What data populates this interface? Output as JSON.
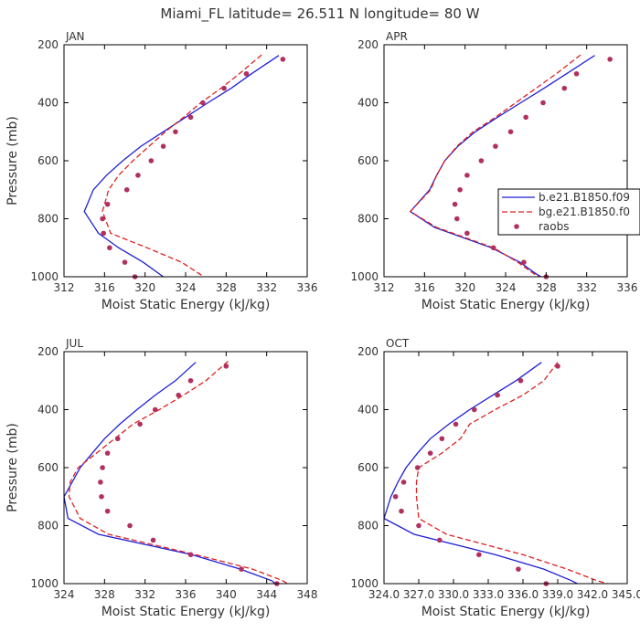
{
  "title": "Miami_FL   latitude= 26.511 N longitude= 80 W",
  "legend_entries": [
    "b.e21.B1850.f09",
    "bg.e21.B1850.f0",
    "raobs"
  ],
  "colors": {
    "model_b": "#1f1fd6",
    "model_bg": "#e02020",
    "raobs": "#b03060",
    "axis": "#000000",
    "text": "#333333"
  },
  "chart_data": [
    {
      "type": "line",
      "panel": "JAN",
      "xlabel": "Moist Static Energy (kJ/kg)",
      "ylabel": "Pressure (mb)",
      "xlim": [
        312,
        336
      ],
      "ylim": [
        1000,
        200
      ],
      "xticks": [
        312,
        316,
        320,
        324,
        328,
        332,
        336
      ],
      "xtick_labels": [
        "312",
        "316",
        "320",
        "324",
        "328",
        "332",
        "336"
      ],
      "yticks": [
        200,
        400,
        600,
        800,
        1000
      ],
      "ytick_labels": [
        "200",
        "400",
        "600",
        "800",
        "1000"
      ],
      "legend_shown": false,
      "series": [
        {
          "style": "solid",
          "color": "#1f1fd6",
          "y": [
            237,
            300,
            350,
            400,
            450,
            500,
            550,
            600,
            650,
            700,
            775,
            850,
            900,
            950,
            1000,
            1010
          ],
          "values": [
            333.2,
            330.5,
            328.5,
            326.2,
            324.0,
            321.8,
            319.6,
            317.8,
            316.2,
            314.9,
            314.0,
            315.4,
            317.4,
            319.8,
            321.8,
            322.3
          ]
        },
        {
          "style": "dashed",
          "color": "#e02020",
          "y": [
            235,
            300,
            350,
            400,
            450,
            500,
            550,
            600,
            650,
            700,
            775,
            850,
            900,
            950,
            1000,
            1012
          ],
          "values": [
            331.5,
            329.3,
            327.5,
            325.5,
            323.8,
            322.0,
            320.4,
            318.8,
            317.4,
            316.4,
            315.8,
            316.6,
            320.2,
            323.6,
            325.8,
            326.5
          ]
        },
        {
          "style": "points",
          "color": "#b03060",
          "y": [
            250,
            300,
            350,
            400,
            450,
            500,
            550,
            600,
            650,
            700,
            750,
            800,
            850,
            900,
            950,
            1000
          ],
          "values": [
            333.6,
            330.0,
            327.8,
            325.7,
            324.5,
            323.0,
            321.8,
            320.6,
            319.3,
            318.2,
            316.3,
            315.8,
            315.9,
            316.5,
            318.0,
            319.0
          ]
        }
      ]
    },
    {
      "type": "line",
      "panel": "APR",
      "xlabel": "Moist Static Energy (kJ/kg)",
      "ylabel": "",
      "xlim": [
        312,
        336
      ],
      "ylim": [
        1000,
        200
      ],
      "xticks": [
        312,
        316,
        320,
        324,
        328,
        332,
        336
      ],
      "xtick_labels": [
        "312",
        "316",
        "320",
        "324",
        "328",
        "332",
        "336"
      ],
      "yticks": [
        200,
        400,
        600,
        800,
        1000
      ],
      "ytick_labels": [
        "200",
        "400",
        "600",
        "800",
        "1000"
      ],
      "legend_shown": true,
      "series": [
        {
          "style": "solid",
          "color": "#1f1fd6",
          "y": [
            237,
            300,
            350,
            400,
            450,
            500,
            550,
            600,
            650,
            700,
            775,
            830,
            900,
            950,
            990,
            1010
          ],
          "values": [
            332.8,
            330.0,
            327.8,
            325.5,
            323.2,
            321.0,
            319.3,
            318.0,
            317.2,
            316.5,
            314.6,
            317.0,
            322.6,
            325.4,
            327.0,
            328.0
          ]
        },
        {
          "style": "dashed",
          "color": "#e02020",
          "y": [
            235,
            300,
            350,
            400,
            450,
            500,
            550,
            600,
            650,
            700,
            775,
            830,
            900,
            950,
            990,
            1010
          ],
          "values": [
            331.4,
            329.0,
            327.0,
            325.0,
            323.0,
            320.8,
            319.2,
            318.0,
            317.2,
            316.6,
            314.6,
            317.2,
            322.8,
            325.2,
            326.8,
            327.8
          ]
        },
        {
          "style": "points",
          "color": "#b03060",
          "y": [
            250,
            300,
            350,
            400,
            450,
            500,
            550,
            600,
            650,
            700,
            750,
            800,
            850,
            900,
            950,
            1000
          ],
          "values": [
            334.3,
            331.0,
            329.8,
            327.7,
            326.0,
            324.5,
            323.0,
            321.6,
            320.2,
            319.5,
            319.0,
            319.2,
            320.2,
            322.8,
            325.8,
            328.0
          ]
        }
      ]
    },
    {
      "type": "line",
      "panel": "JUL",
      "xlabel": "Moist Static Energy (kJ/kg)",
      "ylabel": "Pressure (mb)",
      "xlim": [
        324,
        348
      ],
      "ylim": [
        1000,
        200
      ],
      "xticks": [
        324,
        328,
        332,
        336,
        340,
        344,
        348
      ],
      "xtick_labels": [
        "324",
        "328",
        "332",
        "336",
        "340",
        "344",
        "348"
      ],
      "yticks": [
        200,
        400,
        600,
        800,
        1000
      ],
      "ytick_labels": [
        "200",
        "400",
        "600",
        "800",
        "1000"
      ],
      "legend_shown": false,
      "series": [
        {
          "style": "solid",
          "color": "#1f1fd6",
          "y": [
            237,
            300,
            350,
            400,
            450,
            500,
            550,
            600,
            650,
            700,
            775,
            830,
            900,
            950,
            990,
            1010
          ],
          "values": [
            337.0,
            335.0,
            333.0,
            331.2,
            329.5,
            328.0,
            326.8,
            325.6,
            324.8,
            324.0,
            324.4,
            327.4,
            336.6,
            341.4,
            344.5,
            345.2
          ]
        },
        {
          "style": "dashed",
          "color": "#e02020",
          "y": [
            233,
            300,
            350,
            400,
            450,
            500,
            550,
            600,
            650,
            700,
            775,
            830,
            900,
            950,
            990,
            1010
          ],
          "values": [
            340.2,
            338.0,
            335.8,
            333.4,
            330.8,
            329.0,
            327.2,
            325.4,
            324.6,
            324.5,
            325.6,
            328.4,
            337.0,
            342.6,
            345.6,
            346.5
          ]
        },
        {
          "style": "points",
          "color": "#b03060",
          "y": [
            250,
            300,
            350,
            400,
            450,
            500,
            550,
            600,
            650,
            700,
            750,
            800,
            850,
            900,
            950,
            1000
          ],
          "values": [
            340.0,
            336.5,
            335.3,
            333.0,
            331.5,
            329.3,
            328.3,
            327.8,
            327.6,
            327.7,
            328.3,
            330.5,
            332.8,
            336.5,
            341.5,
            345.0
          ]
        }
      ]
    },
    {
      "type": "line",
      "panel": "OCT",
      "xlabel": "Moist Static Energy (kJ/kg)",
      "ylabel": "",
      "xlim": [
        324.0,
        345.0
      ],
      "ylim": [
        1000,
        200
      ],
      "xticks": [
        324.0,
        327.0,
        330.0,
        333.0,
        336.0,
        339.0,
        342.0,
        345.0
      ],
      "xtick_labels": [
        "324.0",
        "327.0",
        "330.0",
        "333.0",
        "336.0",
        "339.0",
        "342.0",
        "345.0"
      ],
      "yticks": [
        200,
        400,
        600,
        800,
        1000
      ],
      "ytick_labels": [
        "200",
        "400",
        "600",
        "800",
        "1000"
      ],
      "legend_shown": false,
      "series": [
        {
          "style": "solid",
          "color": "#1f1fd6",
          "y": [
            237,
            300,
            350,
            400,
            450,
            500,
            550,
            600,
            650,
            700,
            775,
            830,
            900,
            950,
            990,
            1010
          ],
          "values": [
            337.6,
            335.4,
            333.4,
            331.4,
            329.6,
            328.0,
            326.9,
            325.9,
            325.2,
            324.6,
            324.0,
            326.6,
            333.6,
            337.8,
            340.2,
            341.2
          ]
        },
        {
          "style": "dashed",
          "color": "#e02020",
          "y": [
            237,
            300,
            350,
            400,
            450,
            500,
            550,
            600,
            650,
            700,
            775,
            830,
            900,
            950,
            990,
            1010
          ],
          "values": [
            339.0,
            337.8,
            336.0,
            333.6,
            331.4,
            330.6,
            329.0,
            327.0,
            326.8,
            326.8,
            327.0,
            329.4,
            336.0,
            339.8,
            342.4,
            344.2
          ]
        },
        {
          "style": "points",
          "color": "#b03060",
          "y": [
            250,
            300,
            350,
            400,
            450,
            500,
            550,
            600,
            650,
            700,
            750,
            800,
            850,
            900,
            950,
            1000
          ],
          "values": [
            339.0,
            335.8,
            333.8,
            331.8,
            330.2,
            329.0,
            328.0,
            326.9,
            325.7,
            325.0,
            325.5,
            327.0,
            328.8,
            332.2,
            335.6,
            338.0
          ]
        }
      ]
    }
  ]
}
